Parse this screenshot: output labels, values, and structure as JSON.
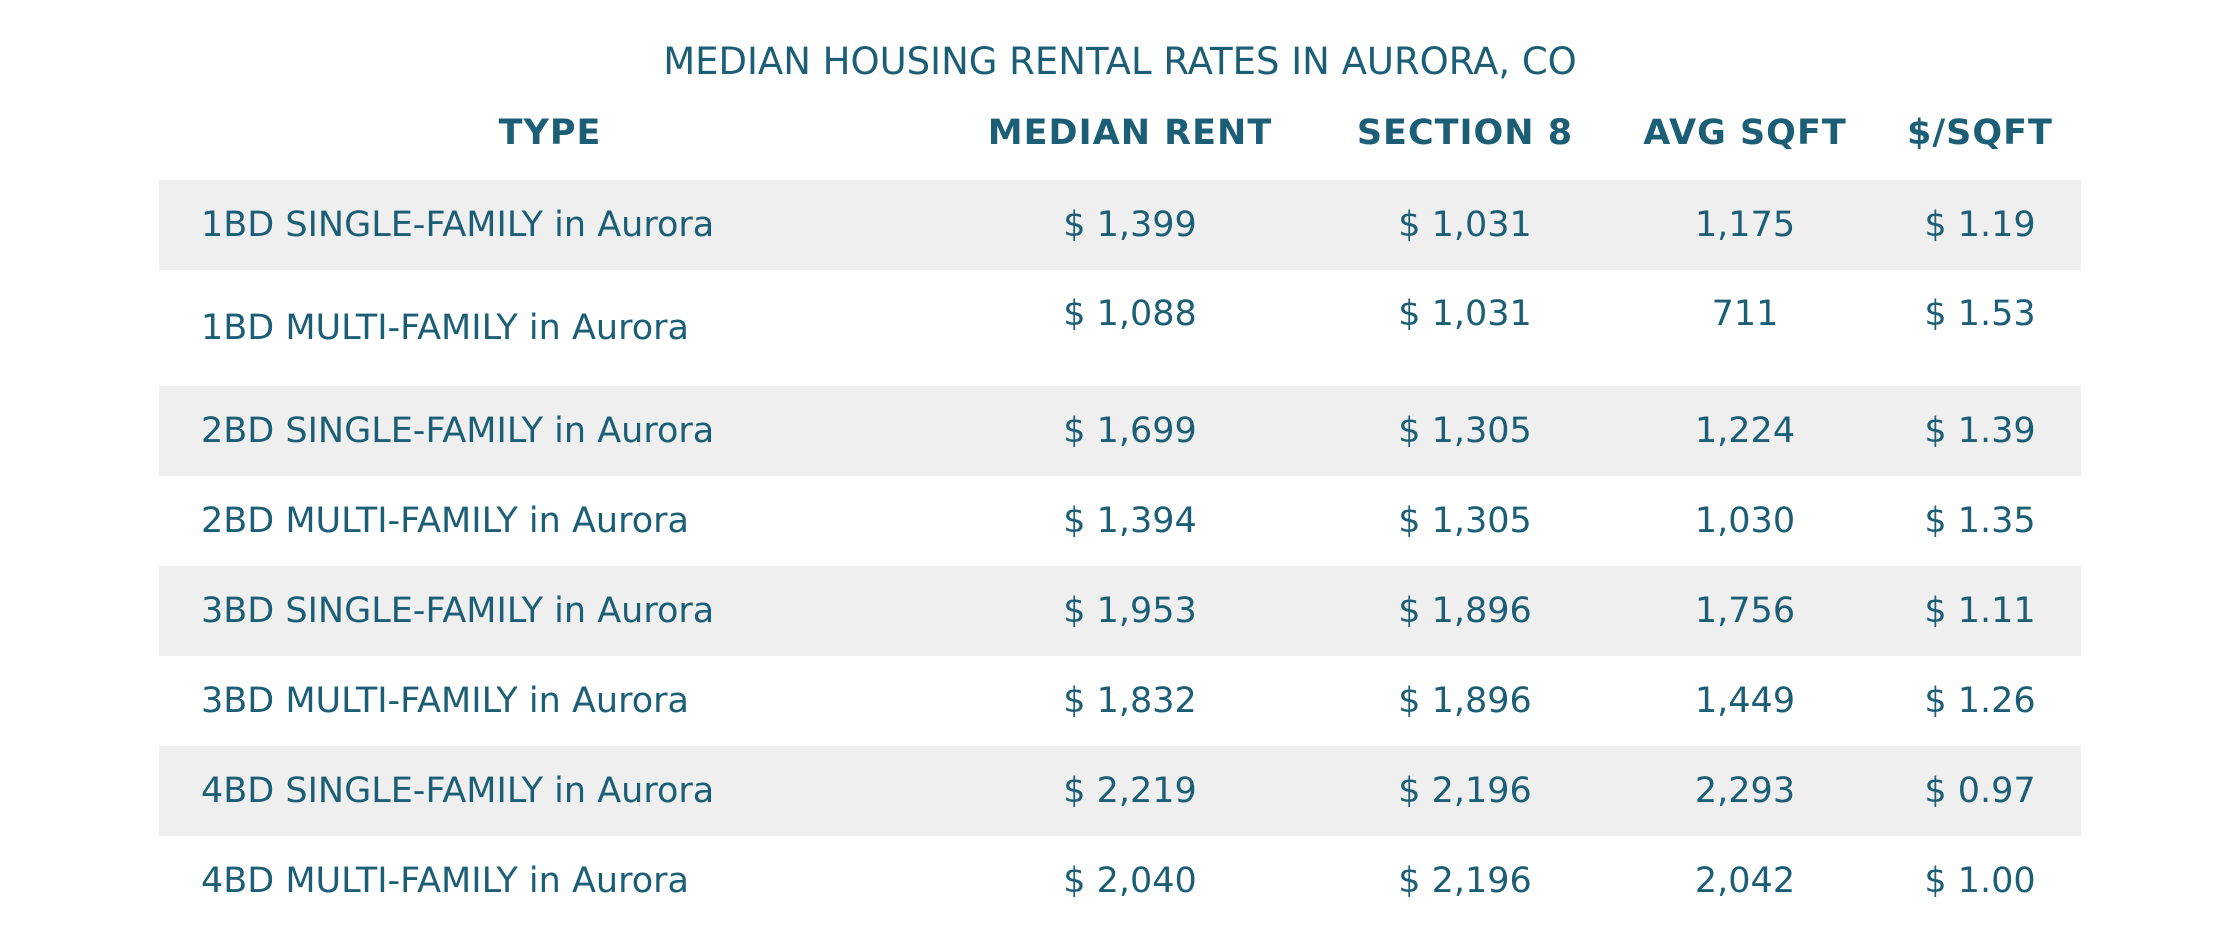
{
  "title": "MEDIAN HOUSING RENTAL RATES IN AURORA, CO",
  "columns": [
    "TYPE",
    "MEDIAN RENT",
    "SECTION 8",
    "AVG SQFT",
    "$/SQFT"
  ],
  "rows": [
    {
      "type": "1BD SINGLE-FAMILY in Aurora",
      "median_rent": "$ 1,399",
      "section8": "$ 1,031",
      "avg_sqft": "1,175",
      "per_sqft": "$ 1.19"
    },
    {
      "type": "1BD MULTI-FAMILY in Aurora",
      "median_rent": "$ 1,088",
      "section8": "$ 1,031",
      "avg_sqft": "711",
      "per_sqft": "$ 1.53"
    },
    {
      "type": "2BD SINGLE-FAMILY in Aurora",
      "median_rent": "$ 1,699",
      "section8": "$ 1,305",
      "avg_sqft": "1,224",
      "per_sqft": "$ 1.39"
    },
    {
      "type": "2BD MULTI-FAMILY in Aurora",
      "median_rent": "$ 1,394",
      "section8": "$ 1,305",
      "avg_sqft": "1,030",
      "per_sqft": "$ 1.35"
    },
    {
      "type": "3BD SINGLE-FAMILY in Aurora",
      "median_rent": "$ 1,953",
      "section8": "$ 1,896",
      "avg_sqft": "1,756",
      "per_sqft": "$ 1.11"
    },
    {
      "type": "3BD MULTI-FAMILY in Aurora",
      "median_rent": "$ 1,832",
      "section8": "$ 1,896",
      "avg_sqft": "1,449",
      "per_sqft": "$ 1.26"
    },
    {
      "type": "4BD SINGLE-FAMILY in Aurora",
      "median_rent": "$ 2,219",
      "section8": "$ 2,196",
      "avg_sqft": "2,293",
      "per_sqft": "$ 0.97"
    },
    {
      "type": "4BD MULTI-FAMILY in Aurora",
      "median_rent": "$ 2,040",
      "section8": "$ 2,196",
      "avg_sqft": "2,042",
      "per_sqft": "$ 1.00"
    }
  ],
  "colors": {
    "text": "#1b5e75",
    "row_shade": "#efefef",
    "background": "#ffffff"
  }
}
